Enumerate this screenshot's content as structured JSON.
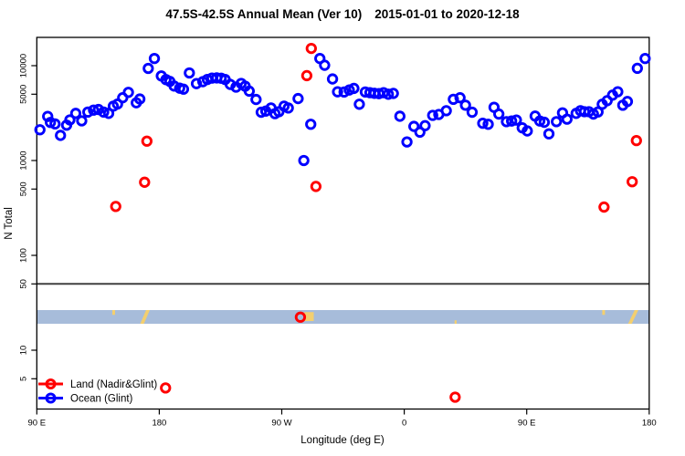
{
  "header": {
    "title": "47.5S-42.5S Annual Mean (Ver 10)",
    "date_range": "2015-01-01 to 2020-12-18"
  },
  "colors": {
    "land": "#ff0000",
    "ocean": "#0000ff",
    "band_ocean": "#a7bcda",
    "band_land": "#f3cf6f",
    "axis": "#000000",
    "hline": "#404040"
  },
  "legend": {
    "items": [
      {
        "label": "Land (Nadir&Glint)",
        "color": "#ff0000"
      },
      {
        "label": "Ocean (Glint)",
        "color": "#0000ff"
      }
    ]
  },
  "chart_data": {
    "type": "scatter",
    "title": "47.5S-42.5S Annual Mean (Ver 10)   2015-01-01 to 2020-12-18",
    "xlabel": "Longitude (deg E)",
    "ylabel": "N Total",
    "x_axis": {
      "units": "degrees east, wrapping 90E to 180 (450 deg span)",
      "range": [
        90,
        540
      ],
      "ticks": [
        {
          "lon": 90,
          "label": "90 E"
        },
        {
          "lon": 180,
          "label": "180"
        },
        {
          "lon": 270,
          "label": "90 W"
        },
        {
          "lon": 360,
          "label": "0"
        },
        {
          "lon": 450,
          "label": "90 E"
        },
        {
          "lon": 540,
          "label": "180"
        }
      ]
    },
    "y_axis": {
      "scale": "log10",
      "ticks": [
        5,
        10,
        50,
        100,
        500,
        1000,
        5000,
        10000
      ],
      "range": [
        2.4,
        19900
      ]
    },
    "hline_value": 50,
    "map_band": {
      "description": "latitude-band map strip: ocean in light blue, land in tan",
      "value_range": [
        19,
        26.5
      ],
      "patches": [
        {
          "name": "tasmania-west",
          "shape": "rect",
          "lon": [
            145.5,
            147.5
          ],
          "band_frac": [
            0.0,
            0.35
          ]
        },
        {
          "name": "new-zealand-west",
          "shape": "slant",
          "lon": [
            166,
            173
          ],
          "band_frac": [
            0.0,
            1.0
          ]
        },
        {
          "name": "south-america",
          "shape": "rect",
          "lon": [
            286.5,
            293.5
          ],
          "band_frac": [
            0.15,
            0.8
          ]
        },
        {
          "name": "prince-edward-islands",
          "shape": "rect",
          "lon": [
            397,
            398.5
          ],
          "band_frac": [
            0.75,
            1.0
          ]
        },
        {
          "name": "tasmania-east",
          "shape": "rect",
          "lon": [
            505.5,
            507.5
          ],
          "band_frac": [
            0.0,
            0.35
          ]
        },
        {
          "name": "new-zealand-east",
          "shape": "slant",
          "lon": [
            524.5,
            532
          ],
          "band_frac": [
            0.0,
            1.0
          ]
        }
      ]
    },
    "series": [
      {
        "name": "Ocean (Glint)",
        "color": "#0000ff",
        "points": [
          [
            92.3,
            2110
          ],
          [
            98,
            2920
          ],
          [
            100,
            2520
          ],
          [
            103.4,
            2430
          ],
          [
            107.4,
            1840
          ],
          [
            111.9,
            2360
          ],
          [
            114.3,
            2680
          ],
          [
            118.6,
            3140
          ],
          [
            123,
            2620
          ],
          [
            127.5,
            3240
          ],
          [
            131.7,
            3400
          ],
          [
            135.3,
            3450
          ],
          [
            139.1,
            3240
          ],
          [
            142.8,
            3140
          ],
          [
            146.2,
            3740
          ],
          [
            149.3,
            3940
          ],
          [
            153.1,
            4590
          ],
          [
            157.3,
            5230
          ],
          [
            163.1,
            4060
          ],
          [
            165.7,
            4450
          ],
          [
            171.9,
            9360
          ],
          [
            176.4,
            11900
          ],
          [
            181.5,
            7790
          ],
          [
            184.9,
            7130
          ],
          [
            187.8,
            6820
          ],
          [
            190.9,
            6100
          ],
          [
            195,
            5790
          ],
          [
            197.8,
            5650
          ],
          [
            202.1,
            8380
          ],
          [
            207.3,
            6470
          ],
          [
            212,
            6780
          ],
          [
            215.3,
            7150
          ],
          [
            218.7,
            7400
          ],
          [
            222.2,
            7430
          ],
          [
            225.5,
            7380
          ],
          [
            228.4,
            7150
          ],
          [
            232.2,
            6340
          ],
          [
            236.4,
            5940
          ],
          [
            240.2,
            6490
          ],
          [
            243.1,
            6080
          ],
          [
            246.1,
            5390
          ],
          [
            251.1,
            4400
          ],
          [
            254.9,
            3230
          ],
          [
            258.3,
            3320
          ],
          [
            262.1,
            3580
          ],
          [
            265,
            3120
          ],
          [
            267.9,
            3270
          ],
          [
            271.7,
            3740
          ],
          [
            274.8,
            3580
          ],
          [
            282,
            4500
          ],
          [
            286.2,
            1000
          ],
          [
            291.3,
            2410
          ],
          [
            298,
            11900
          ],
          [
            301.5,
            10100
          ],
          [
            307.3,
            7240
          ],
          [
            311,
            5300
          ],
          [
            315.8,
            5280
          ],
          [
            319.6,
            5540
          ],
          [
            323,
            5760
          ],
          [
            327,
            3920
          ],
          [
            331.4,
            5280
          ],
          [
            334.8,
            5190
          ],
          [
            338.1,
            5110
          ],
          [
            341.4,
            5070
          ],
          [
            344.8,
            5190
          ],
          [
            348.3,
            5000
          ],
          [
            352,
            5100
          ],
          [
            356.8,
            2930
          ],
          [
            362,
            1570
          ],
          [
            367.1,
            2290
          ],
          [
            371.5,
            1990
          ],
          [
            375.3,
            2330
          ],
          [
            380.9,
            2990
          ],
          [
            385.4,
            3060
          ],
          [
            390.9,
            3350
          ],
          [
            396.1,
            4420
          ],
          [
            401,
            4590
          ],
          [
            405,
            3830
          ],
          [
            409.9,
            3230
          ],
          [
            417.7,
            2470
          ],
          [
            421.7,
            2410
          ],
          [
            426,
            3640
          ],
          [
            429.5,
            3090
          ],
          [
            435.1,
            2570
          ],
          [
            438.9,
            2610
          ],
          [
            442.4,
            2670
          ],
          [
            446.7,
            2210
          ],
          [
            450.4,
            2050
          ],
          [
            456.2,
            2940
          ],
          [
            459.6,
            2610
          ],
          [
            462.9,
            2530
          ],
          [
            466.3,
            1910
          ],
          [
            471.8,
            2570
          ],
          [
            476.3,
            3180
          ],
          [
            479.6,
            2730
          ],
          [
            486.3,
            3140
          ],
          [
            489.5,
            3350
          ],
          [
            492.4,
            3270
          ],
          [
            495.7,
            3270
          ],
          [
            499,
            3090
          ],
          [
            502.4,
            3250
          ],
          [
            505.5,
            3920
          ],
          [
            509.1,
            4270
          ],
          [
            513.1,
            4890
          ],
          [
            516.9,
            5310
          ],
          [
            520.6,
            3830
          ],
          [
            524,
            4190
          ],
          [
            531.3,
            9380
          ],
          [
            537,
            11900
          ]
        ]
      },
      {
        "name": "Land (Nadir&Glint)",
        "color": "#ff0000",
        "points": [
          [
            148,
            328
          ],
          [
            169.2,
            590
          ],
          [
            170.9,
            1600
          ],
          [
            184.6,
            4
          ],
          [
            283.7,
            22.3
          ],
          [
            288.4,
            7850
          ],
          [
            291.7,
            15200
          ],
          [
            295.1,
            533
          ],
          [
            397.4,
            3.2
          ],
          [
            506.8,
            323
          ],
          [
            527.5,
            598
          ],
          [
            530.6,
            1622
          ]
        ]
      }
    ]
  }
}
